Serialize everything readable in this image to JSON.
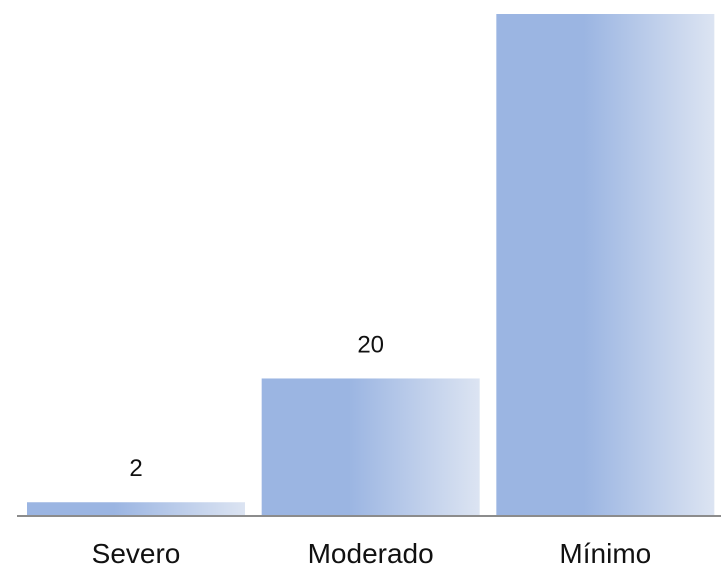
{
  "chart_data": {
    "type": "bar",
    "categories": [
      "Severo",
      "Moderado",
      "Mínimo"
    ],
    "values": [
      2,
      20,
      73
    ],
    "data_labels": [
      "2",
      "20",
      ""
    ],
    "title": "",
    "xlabel": "",
    "ylabel": "",
    "ylim": [
      0,
      73
    ],
    "grid": false,
    "legend": "none",
    "colors": {
      "bar_dark": "#9BB5E2",
      "bar_light": "#DCE4F2",
      "axis": "#8C8C8C",
      "text": "#111111"
    }
  }
}
